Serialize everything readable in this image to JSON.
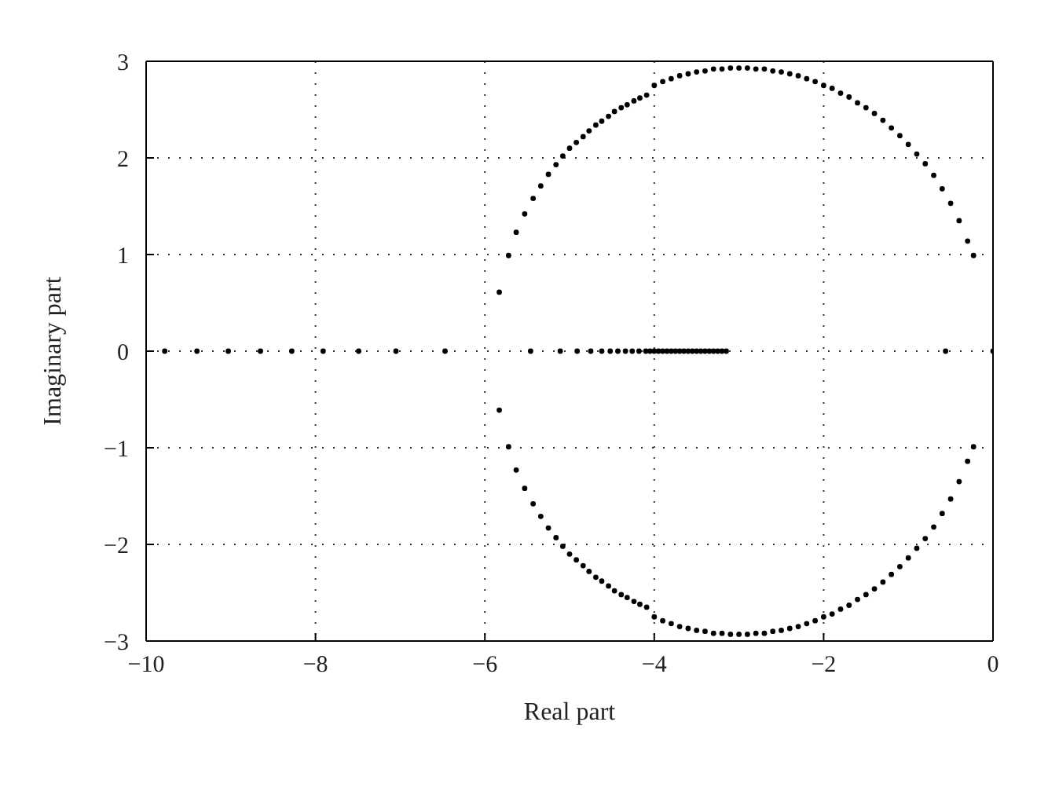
{
  "chart_data": {
    "type": "scatter",
    "xlabel": "Real part",
    "ylabel": "Imaginary part",
    "color": "#000000",
    "marker": "circle",
    "grid": true,
    "xlim": [
      -10,
      0
    ],
    "xticks": [
      -10,
      -8,
      -6,
      -4,
      -2,
      0
    ],
    "ylim": [
      -3,
      3
    ],
    "yticks": [
      -3,
      -2,
      -1,
      0,
      1,
      2,
      3
    ],
    "x": [
      -9.78,
      -9.4,
      -9.03,
      -8.65,
      -8.28,
      -7.91,
      -7.49,
      -7.05,
      -6.47,
      -5.46,
      -5.11,
      -4.91,
      -4.75,
      -4.62,
      -4.52,
      -4.43,
      -4.34,
      -4.26,
      -4.18,
      -4.1,
      -4.05,
      -4.0,
      -3.95,
      -3.9,
      -3.85,
      -3.8,
      -3.75,
      -3.7,
      -3.65,
      -3.6,
      -3.55,
      -3.5,
      -3.45,
      -3.4,
      -3.35,
      -3.3,
      -3.25,
      -3.2,
      -3.15,
      -0.56,
      0,
      -5.83,
      -5.72,
      -5.63,
      -5.53,
      -5.43,
      -5.34,
      -5.25,
      -5.16,
      -5.08,
      -5.0,
      -4.92,
      -4.84,
      -4.77,
      -4.69,
      -4.62,
      -4.54,
      -4.47,
      -4.39,
      -4.32,
      -4.24,
      -4.17,
      -4.09,
      -4.0,
      -3.9,
      -3.8,
      -3.7,
      -3.6,
      -3.5,
      -3.4,
      -3.3,
      -3.2,
      -3.1,
      -3.0,
      -2.9,
      -2.8,
      -2.7,
      -2.6,
      -2.5,
      -2.4,
      -2.3,
      -2.2,
      -2.1,
      -2.0,
      -1.9,
      -1.8,
      -1.7,
      -1.6,
      -1.5,
      -1.4,
      -1.3,
      -1.2,
      -1.1,
      -1.0,
      -0.9,
      -0.8,
      -0.7,
      -0.6,
      -0.5,
      -0.4,
      -0.3,
      -0.23,
      -5.83,
      -5.72,
      -5.63,
      -5.53,
      -5.43,
      -5.34,
      -5.25,
      -5.16,
      -5.08,
      -5.0,
      -4.92,
      -4.84,
      -4.77,
      -4.69,
      -4.62,
      -4.54,
      -4.47,
      -4.39,
      -4.32,
      -4.24,
      -4.17,
      -4.09,
      -4.0,
      -3.9,
      -3.8,
      -3.7,
      -3.6,
      -3.5,
      -3.4,
      -3.3,
      -3.2,
      -3.1,
      -3.0,
      -2.9,
      -2.8,
      -2.7,
      -2.6,
      -2.5,
      -2.4,
      -2.3,
      -2.2,
      -2.1,
      -2.0,
      -1.9,
      -1.8,
      -1.7,
      -1.6,
      -1.5,
      -1.4,
      -1.3,
      -1.2,
      -1.1,
      -1.0,
      -0.9,
      -0.8,
      -0.7,
      -0.6,
      -0.5,
      -0.4,
      -0.3,
      -0.23
    ],
    "values": [
      0,
      0,
      0,
      0,
      0,
      0,
      0,
      0,
      0,
      0,
      0,
      0,
      0,
      0,
      0,
      0,
      0,
      0,
      0,
      0,
      0,
      0,
      0,
      0,
      0,
      0,
      0,
      0,
      0,
      0,
      0,
      0,
      0,
      0,
      0,
      0,
      0,
      0,
      0,
      0,
      0,
      0.61,
      0.99,
      1.23,
      1.42,
      1.58,
      1.71,
      1.83,
      1.93,
      2.02,
      2.1,
      2.16,
      2.22,
      2.28,
      2.34,
      2.38,
      2.43,
      2.48,
      2.52,
      2.55,
      2.59,
      2.62,
      2.65,
      2.75,
      2.79,
      2.82,
      2.85,
      2.87,
      2.89,
      2.9,
      2.92,
      2.92,
      2.93,
      2.93,
      2.93,
      2.92,
      2.92,
      2.9,
      2.89,
      2.87,
      2.85,
      2.82,
      2.79,
      2.75,
      2.72,
      2.67,
      2.63,
      2.57,
      2.52,
      2.46,
      2.39,
      2.31,
      2.23,
      2.14,
      2.04,
      1.94,
      1.82,
      1.68,
      1.53,
      1.35,
      1.14,
      0.99,
      -0.61,
      -0.99,
      -1.23,
      -1.42,
      -1.58,
      -1.71,
      -1.83,
      -1.93,
      -2.02,
      -2.1,
      -2.16,
      -2.22,
      -2.28,
      -2.34,
      -2.38,
      -2.43,
      -2.48,
      -2.52,
      -2.55,
      -2.59,
      -2.62,
      -2.65,
      -2.75,
      -2.79,
      -2.82,
      -2.85,
      -2.87,
      -2.89,
      -2.9,
      -2.92,
      -2.92,
      -2.93,
      -2.93,
      -2.93,
      -2.92,
      -2.92,
      -2.9,
      -2.89,
      -2.87,
      -2.85,
      -2.82,
      -2.79,
      -2.75,
      -2.72,
      -2.67,
      -2.63,
      -2.57,
      -2.52,
      -2.46,
      -2.39,
      -2.31,
      -2.23,
      -2.14,
      -2.04,
      -1.94,
      -1.82,
      -1.68,
      -1.53,
      -1.35,
      -1.14,
      -0.99
    ]
  }
}
